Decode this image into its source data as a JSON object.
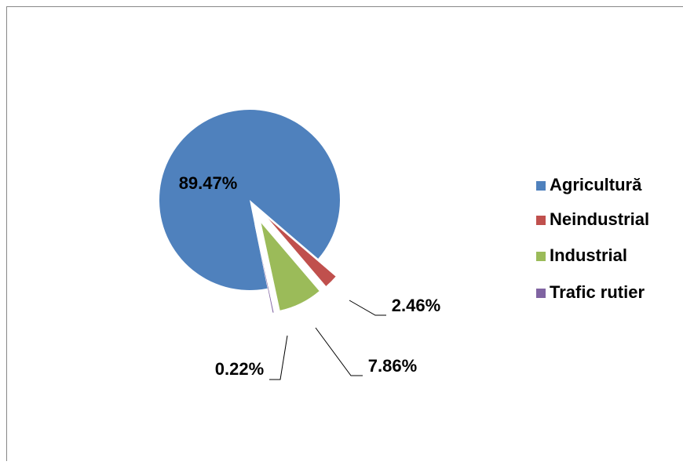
{
  "chart_data": {
    "type": "pie",
    "categories": [
      "Agricultură",
      "Neindustrial",
      "Industrial",
      "Trafic rutier"
    ],
    "values": [
      89.47,
      2.46,
      7.86,
      0.22
    ],
    "value_labels": [
      "89.47%",
      "2.46%",
      "7.86%",
      "0.22%"
    ],
    "colors": [
      "#4f81bd",
      "#c0504d",
      "#9bbb59",
      "#8064a2"
    ],
    "legend": "right"
  }
}
